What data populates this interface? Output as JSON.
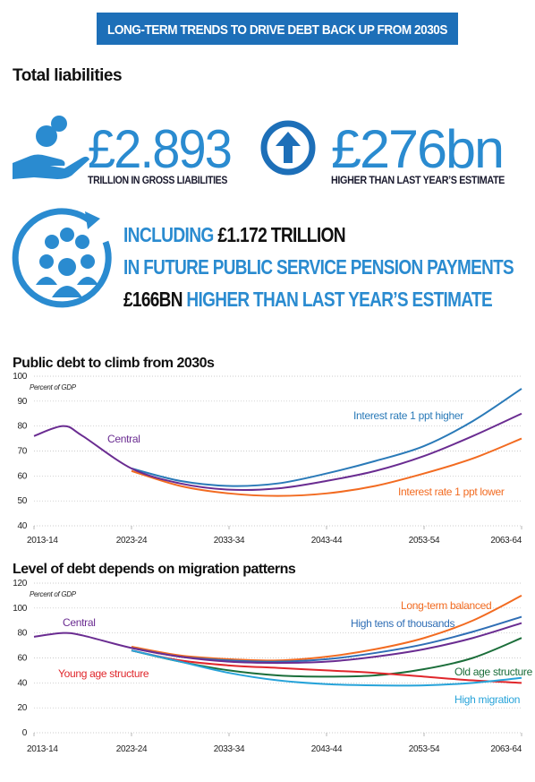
{
  "banner": "LONG-TERM TRENDS TO DRIVE DEBT BACK UP FROM 2030S",
  "section_title": "Total liabilities",
  "stats": [
    {
      "value": "£2.893",
      "caption": "TRILLION IN GROSS LIABILITIES"
    },
    {
      "value": "£276bn",
      "caption": "HIGHER THAN LAST YEAR’S ESTIMATE"
    }
  ],
  "pension": {
    "line1": [
      "INCLUDING",
      "£1.172 TRILLION"
    ],
    "line2": "IN FUTURE PUBLIC SERVICE PENSION PAYMENTS",
    "line3": [
      "£166BN",
      "HIGHER THAN LAST YEAR’S ESTIMATE"
    ]
  },
  "chart_data": [
    {
      "type": "line",
      "title": "Public debt to climb from 2030s",
      "ylabel": "Percent of GDP",
      "x": [
        2013,
        2016,
        2018,
        2023,
        2028,
        2033,
        2038,
        2043,
        2048,
        2053,
        2058,
        2063
      ],
      "xlim": [
        2013,
        2063
      ],
      "xticks": [
        {
          "value": 2013,
          "label": "2013-14"
        },
        {
          "value": 2023,
          "label": "2023-24"
        },
        {
          "value": 2033,
          "label": "2033-34"
        },
        {
          "value": 2043,
          "label": "2043-44"
        },
        {
          "value": 2053,
          "label": "2053-54"
        },
        {
          "value": 2063,
          "label": "2063-64"
        }
      ],
      "ylim": [
        40,
        100
      ],
      "yticks": [
        40,
        50,
        60,
        70,
        80,
        90,
        100
      ],
      "grid": true,
      "series": [
        {
          "name": "Interest rate 1 ppt higher",
          "color": "#2a7ab8",
          "values": [
            null,
            null,
            null,
            63,
            58,
            56,
            57,
            61,
            66,
            72,
            82,
            95
          ]
        },
        {
          "name": "Interest rate 1 ppt lower",
          "color": "#f26b21",
          "values": [
            null,
            null,
            null,
            62,
            56,
            53,
            52,
            53,
            56,
            61,
            67,
            75
          ]
        },
        {
          "name": "Central",
          "color": "#6a2c91",
          "values": [
            76,
            80,
            76,
            63,
            57,
            54.5,
            55,
            58,
            62,
            68,
            76,
            85
          ]
        }
      ]
    },
    {
      "type": "line",
      "title": "Level of debt depends on migration patterns",
      "ylabel": "Percent of GDP",
      "x": [
        2013,
        2016,
        2018,
        2023,
        2028,
        2033,
        2038,
        2043,
        2048,
        2053,
        2058,
        2063
      ],
      "xlim": [
        2013,
        2063
      ],
      "xticks": [
        {
          "value": 2013,
          "label": "2013-14"
        },
        {
          "value": 2023,
          "label": "2023-24"
        },
        {
          "value": 2033,
          "label": "2033-34"
        },
        {
          "value": 2043,
          "label": "2043-44"
        },
        {
          "value": 2053,
          "label": "2053-54"
        },
        {
          "value": 2063,
          "label": "2063-64"
        }
      ],
      "ylim": [
        0,
        120
      ],
      "yticks": [
        0,
        20,
        40,
        60,
        80,
        100,
        120
      ],
      "grid": true,
      "series": [
        {
          "name": "Long-term balanced",
          "color": "#f26b21",
          "values": [
            null,
            null,
            null,
            69,
            62,
            59,
            58,
            61,
            67,
            76,
            90,
            110
          ]
        },
        {
          "name": "High tens of thousands",
          "color": "#2f6eb5",
          "values": [
            null,
            null,
            null,
            68,
            61,
            58,
            57,
            59,
            64,
            71,
            81,
            93
          ]
        },
        {
          "name": "Old age structure",
          "color": "#1b6e3a",
          "values": [
            null,
            null,
            null,
            66,
            57,
            50,
            46,
            45,
            46,
            51,
            60,
            76
          ]
        },
        {
          "name": "Young age structure",
          "color": "#e0262b",
          "values": [
            null,
            null,
            null,
            66,
            58,
            54,
            52,
            50,
            48,
            45,
            42,
            40
          ]
        },
        {
          "name": "High migration",
          "color": "#27a3d9",
          "values": [
            null,
            null,
            null,
            66,
            57,
            48,
            42,
            39,
            38,
            38,
            40,
            44
          ]
        },
        {
          "name": "Central",
          "color": "#6a2c91",
          "values": [
            77,
            80,
            78,
            68,
            61,
            57,
            56,
            57,
            61,
            67,
            76,
            88
          ]
        }
      ]
    }
  ]
}
